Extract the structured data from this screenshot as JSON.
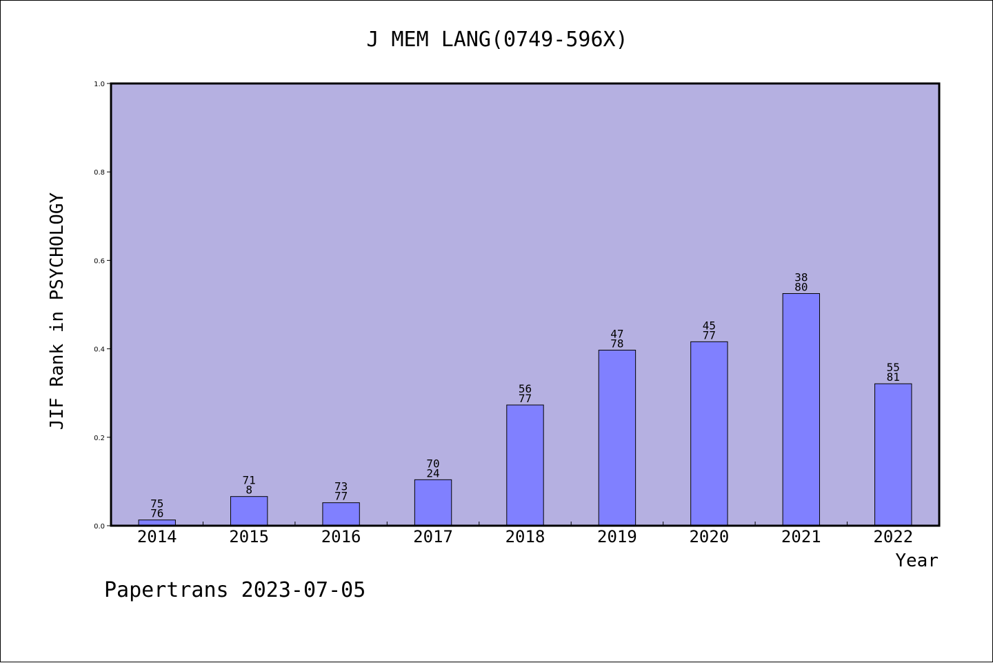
{
  "chart_data": {
    "type": "bar",
    "title": "J MEM LANG(0749-596X)",
    "xlabel": "Year",
    "ylabel": "JIF Rank in PSYCHOLOGY",
    "ylim": [
      0,
      1.0
    ],
    "yticks": [
      "0.0",
      "0.2",
      "0.4",
      "0.6",
      "0.8",
      "1.0"
    ],
    "categories": [
      "2014",
      "2015",
      "2016",
      "2017",
      "2018",
      "2019",
      "2020",
      "2021",
      "2022"
    ],
    "values": [
      0.013,
      0.066,
      0.052,
      0.104,
      0.273,
      0.397,
      0.416,
      0.525,
      0.321
    ],
    "rank_labels": [
      [
        "75",
        "76"
      ],
      [
        "71",
        "8"
      ],
      [
        "73",
        "77"
      ],
      [
        "70",
        "24"
      ],
      [
        "56",
        "77"
      ],
      [
        "47",
        "78"
      ],
      [
        "45",
        "77"
      ],
      [
        "38",
        "80"
      ],
      [
        "55",
        "81"
      ]
    ],
    "grid": false,
    "colors": {
      "plot_background": "#b5b0e1",
      "bar_fill": "#8080ff",
      "bar_stroke": "#000000"
    }
  },
  "footer": "Papertrans 2023-07-05"
}
